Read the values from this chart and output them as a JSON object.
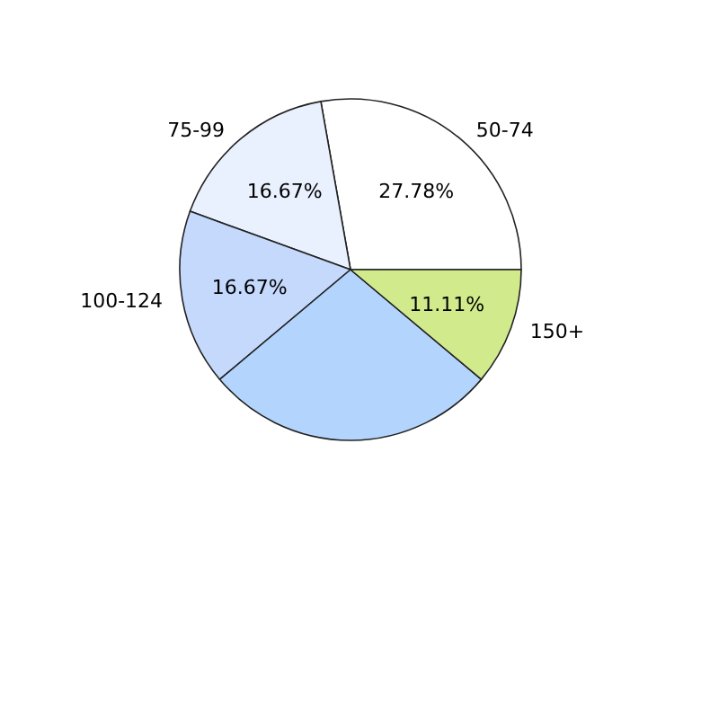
{
  "chart_data": {
    "type": "pie",
    "categories": [
      "50-74",
      "75-99",
      "100-124",
      null,
      "150+"
    ],
    "values": [
      27.78,
      16.67,
      16.67,
      27.77,
      11.11
    ],
    "value_labels": [
      "27.78%",
      "16.67%",
      "16.67%",
      null,
      "11.11%"
    ],
    "colors": [
      "#ffffff",
      "#eaf1fe",
      "#c5d9fd",
      "#b3d5fd",
      "#d0ea8c"
    ]
  }
}
